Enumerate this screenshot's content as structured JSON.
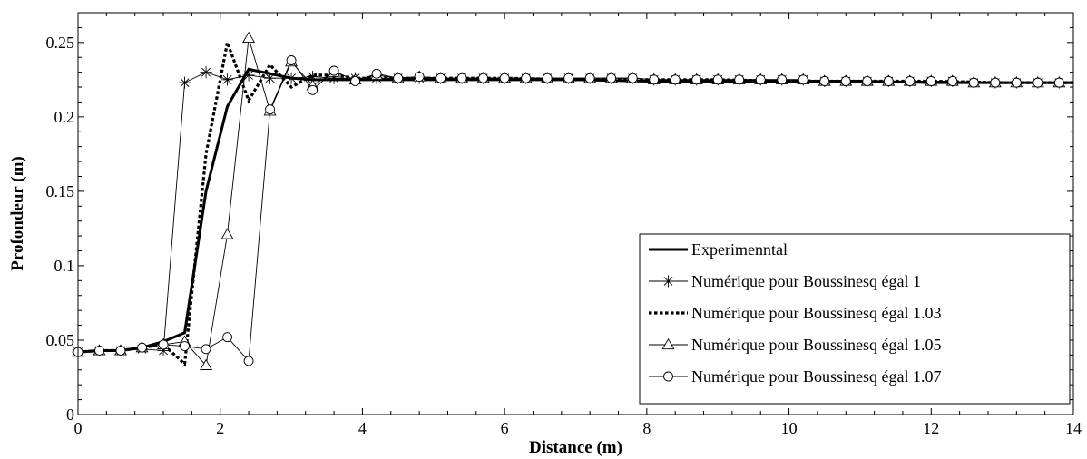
{
  "chart_data": {
    "type": "line",
    "title": "",
    "xlabel": "Distance (m)",
    "ylabel": "Profondeur (m)",
    "xlim": [
      0,
      14
    ],
    "ylim": [
      0,
      0.27
    ],
    "xticks": [
      0,
      2,
      4,
      6,
      8,
      10,
      12,
      14
    ],
    "yticks": [
      0,
      0.05,
      0.1,
      0.15,
      0.2,
      0.25
    ],
    "xtick_labels": [
      "0",
      "2",
      "4",
      "6",
      "8",
      "10",
      "12",
      "14"
    ],
    "ytick_labels": [
      "0",
      "0.05",
      "0.1",
      "0.15",
      "0.2",
      "0.25"
    ],
    "grid": false,
    "legend_position": "lower-right",
    "series": [
      {
        "name": "Experimenntal",
        "style": "thick-solid",
        "marker": "none",
        "x": [
          0,
          0.3,
          0.6,
          0.9,
          1.2,
          1.5,
          1.8,
          2.1,
          2.4,
          2.7,
          3.0,
          3.3,
          3.6,
          3.9,
          4.2,
          5,
          6,
          7,
          8,
          9,
          10,
          11,
          12,
          13,
          14
        ],
        "y": [
          0.042,
          0.043,
          0.043,
          0.045,
          0.049,
          0.055,
          0.15,
          0.207,
          0.232,
          0.229,
          0.226,
          0.225,
          0.225,
          0.225,
          0.225,
          0.225,
          0.225,
          0.225,
          0.224,
          0.224,
          0.224,
          0.224,
          0.223,
          0.223,
          0.223
        ]
      },
      {
        "name": "Numérique pour Boussinesq égal 1",
        "style": "thin-solid",
        "marker": "asterisk",
        "x": [
          0,
          0.3,
          0.6,
          0.9,
          1.2,
          1.5,
          1.8,
          2.1,
          2.4,
          2.7,
          3.0,
          3.3,
          3.6,
          3.9,
          4.2,
          4.5,
          4.8,
          5.1,
          5.4,
          5.7,
          6.0,
          6.3,
          6.6,
          6.9,
          7.2,
          7.5,
          7.8,
          8.1,
          8.4,
          8.7,
          9.0,
          9.3,
          9.6,
          9.9,
          10.2,
          10.5,
          10.8,
          11.1,
          11.4,
          11.7,
          12.0,
          12.3,
          12.6,
          12.9,
          13.2,
          13.5,
          13.8
        ],
        "y": [
          0.042,
          0.043,
          0.043,
          0.044,
          0.043,
          0.223,
          0.23,
          0.225,
          0.228,
          0.226,
          0.226,
          0.227,
          0.226,
          0.226,
          0.226,
          0.226,
          0.226,
          0.226,
          0.226,
          0.226,
          0.226,
          0.226,
          0.226,
          0.226,
          0.226,
          0.226,
          0.226,
          0.225,
          0.225,
          0.225,
          0.225,
          0.225,
          0.225,
          0.225,
          0.225,
          0.224,
          0.224,
          0.224,
          0.224,
          0.224,
          0.224,
          0.224,
          0.223,
          0.223,
          0.223,
          0.223,
          0.223
        ]
      },
      {
        "name": "Numérique pour Boussinesq égal 1.03",
        "style": "dotted",
        "marker": "none",
        "x": [
          0,
          0.3,
          0.6,
          0.9,
          1.2,
          1.5,
          1.8,
          2.1,
          2.4,
          2.7,
          3.0,
          3.3,
          3.6,
          3.9,
          4.2,
          5,
          6,
          7,
          8,
          9,
          10,
          11,
          12,
          13,
          14
        ],
        "y": [
          0.042,
          0.043,
          0.043,
          0.045,
          0.047,
          0.034,
          0.175,
          0.25,
          0.211,
          0.235,
          0.22,
          0.228,
          0.228,
          0.226,
          0.226,
          0.226,
          0.226,
          0.225,
          0.225,
          0.225,
          0.224,
          0.224,
          0.224,
          0.223,
          0.223
        ]
      },
      {
        "name": "Numérique pour Boussinesq égal 1.05",
        "style": "thin-solid",
        "marker": "triangle",
        "x": [
          0,
          0.3,
          0.6,
          0.9,
          1.2,
          1.5,
          1.8,
          2.1,
          2.4,
          2.7,
          3.0,
          3.3,
          3.6,
          3.9,
          4.2,
          4.5,
          4.8,
          5.1,
          5.4,
          5.7,
          6.0,
          6.3,
          6.6,
          6.9,
          7.2,
          7.5,
          7.8,
          8.1,
          8.4,
          8.7,
          9.0,
          9.3,
          9.6,
          9.9,
          10.2,
          10.5,
          10.8,
          11.1,
          11.4,
          11.7,
          12.0,
          12.3,
          12.6,
          12.9,
          13.2,
          13.5,
          13.8
        ],
        "y": [
          0.042,
          0.043,
          0.043,
          0.045,
          0.047,
          0.049,
          0.033,
          0.121,
          0.253,
          0.204,
          0.237,
          0.221,
          0.23,
          0.225,
          0.228,
          0.226,
          0.227,
          0.226,
          0.226,
          0.226,
          0.226,
          0.226,
          0.226,
          0.226,
          0.226,
          0.226,
          0.226,
          0.225,
          0.225,
          0.225,
          0.225,
          0.225,
          0.225,
          0.225,
          0.225,
          0.224,
          0.224,
          0.224,
          0.224,
          0.224,
          0.224,
          0.224,
          0.223,
          0.223,
          0.223,
          0.223,
          0.223
        ]
      },
      {
        "name": "Numérique pour Boussinesq égal 1.07",
        "style": "thin-solid",
        "marker": "circle",
        "x": [
          0,
          0.3,
          0.6,
          0.9,
          1.2,
          1.5,
          1.8,
          2.1,
          2.4,
          2.7,
          3.0,
          3.3,
          3.6,
          3.9,
          4.2,
          4.5,
          4.8,
          5.1,
          5.4,
          5.7,
          6.0,
          6.3,
          6.6,
          6.9,
          7.2,
          7.5,
          7.8,
          8.1,
          8.4,
          8.7,
          9.0,
          9.3,
          9.6,
          9.9,
          10.2,
          10.5,
          10.8,
          11.1,
          11.4,
          11.7,
          12.0,
          12.3,
          12.6,
          12.9,
          13.2,
          13.5,
          13.8
        ],
        "y": [
          0.042,
          0.043,
          0.043,
          0.045,
          0.047,
          0.046,
          0.044,
          0.052,
          0.036,
          0.205,
          0.238,
          0.218,
          0.231,
          0.224,
          0.229,
          0.226,
          0.227,
          0.226,
          0.226,
          0.226,
          0.226,
          0.226,
          0.226,
          0.226,
          0.226,
          0.226,
          0.226,
          0.225,
          0.225,
          0.225,
          0.225,
          0.225,
          0.225,
          0.225,
          0.225,
          0.224,
          0.224,
          0.224,
          0.224,
          0.224,
          0.224,
          0.224,
          0.223,
          0.223,
          0.223,
          0.223,
          0.223
        ]
      }
    ]
  }
}
